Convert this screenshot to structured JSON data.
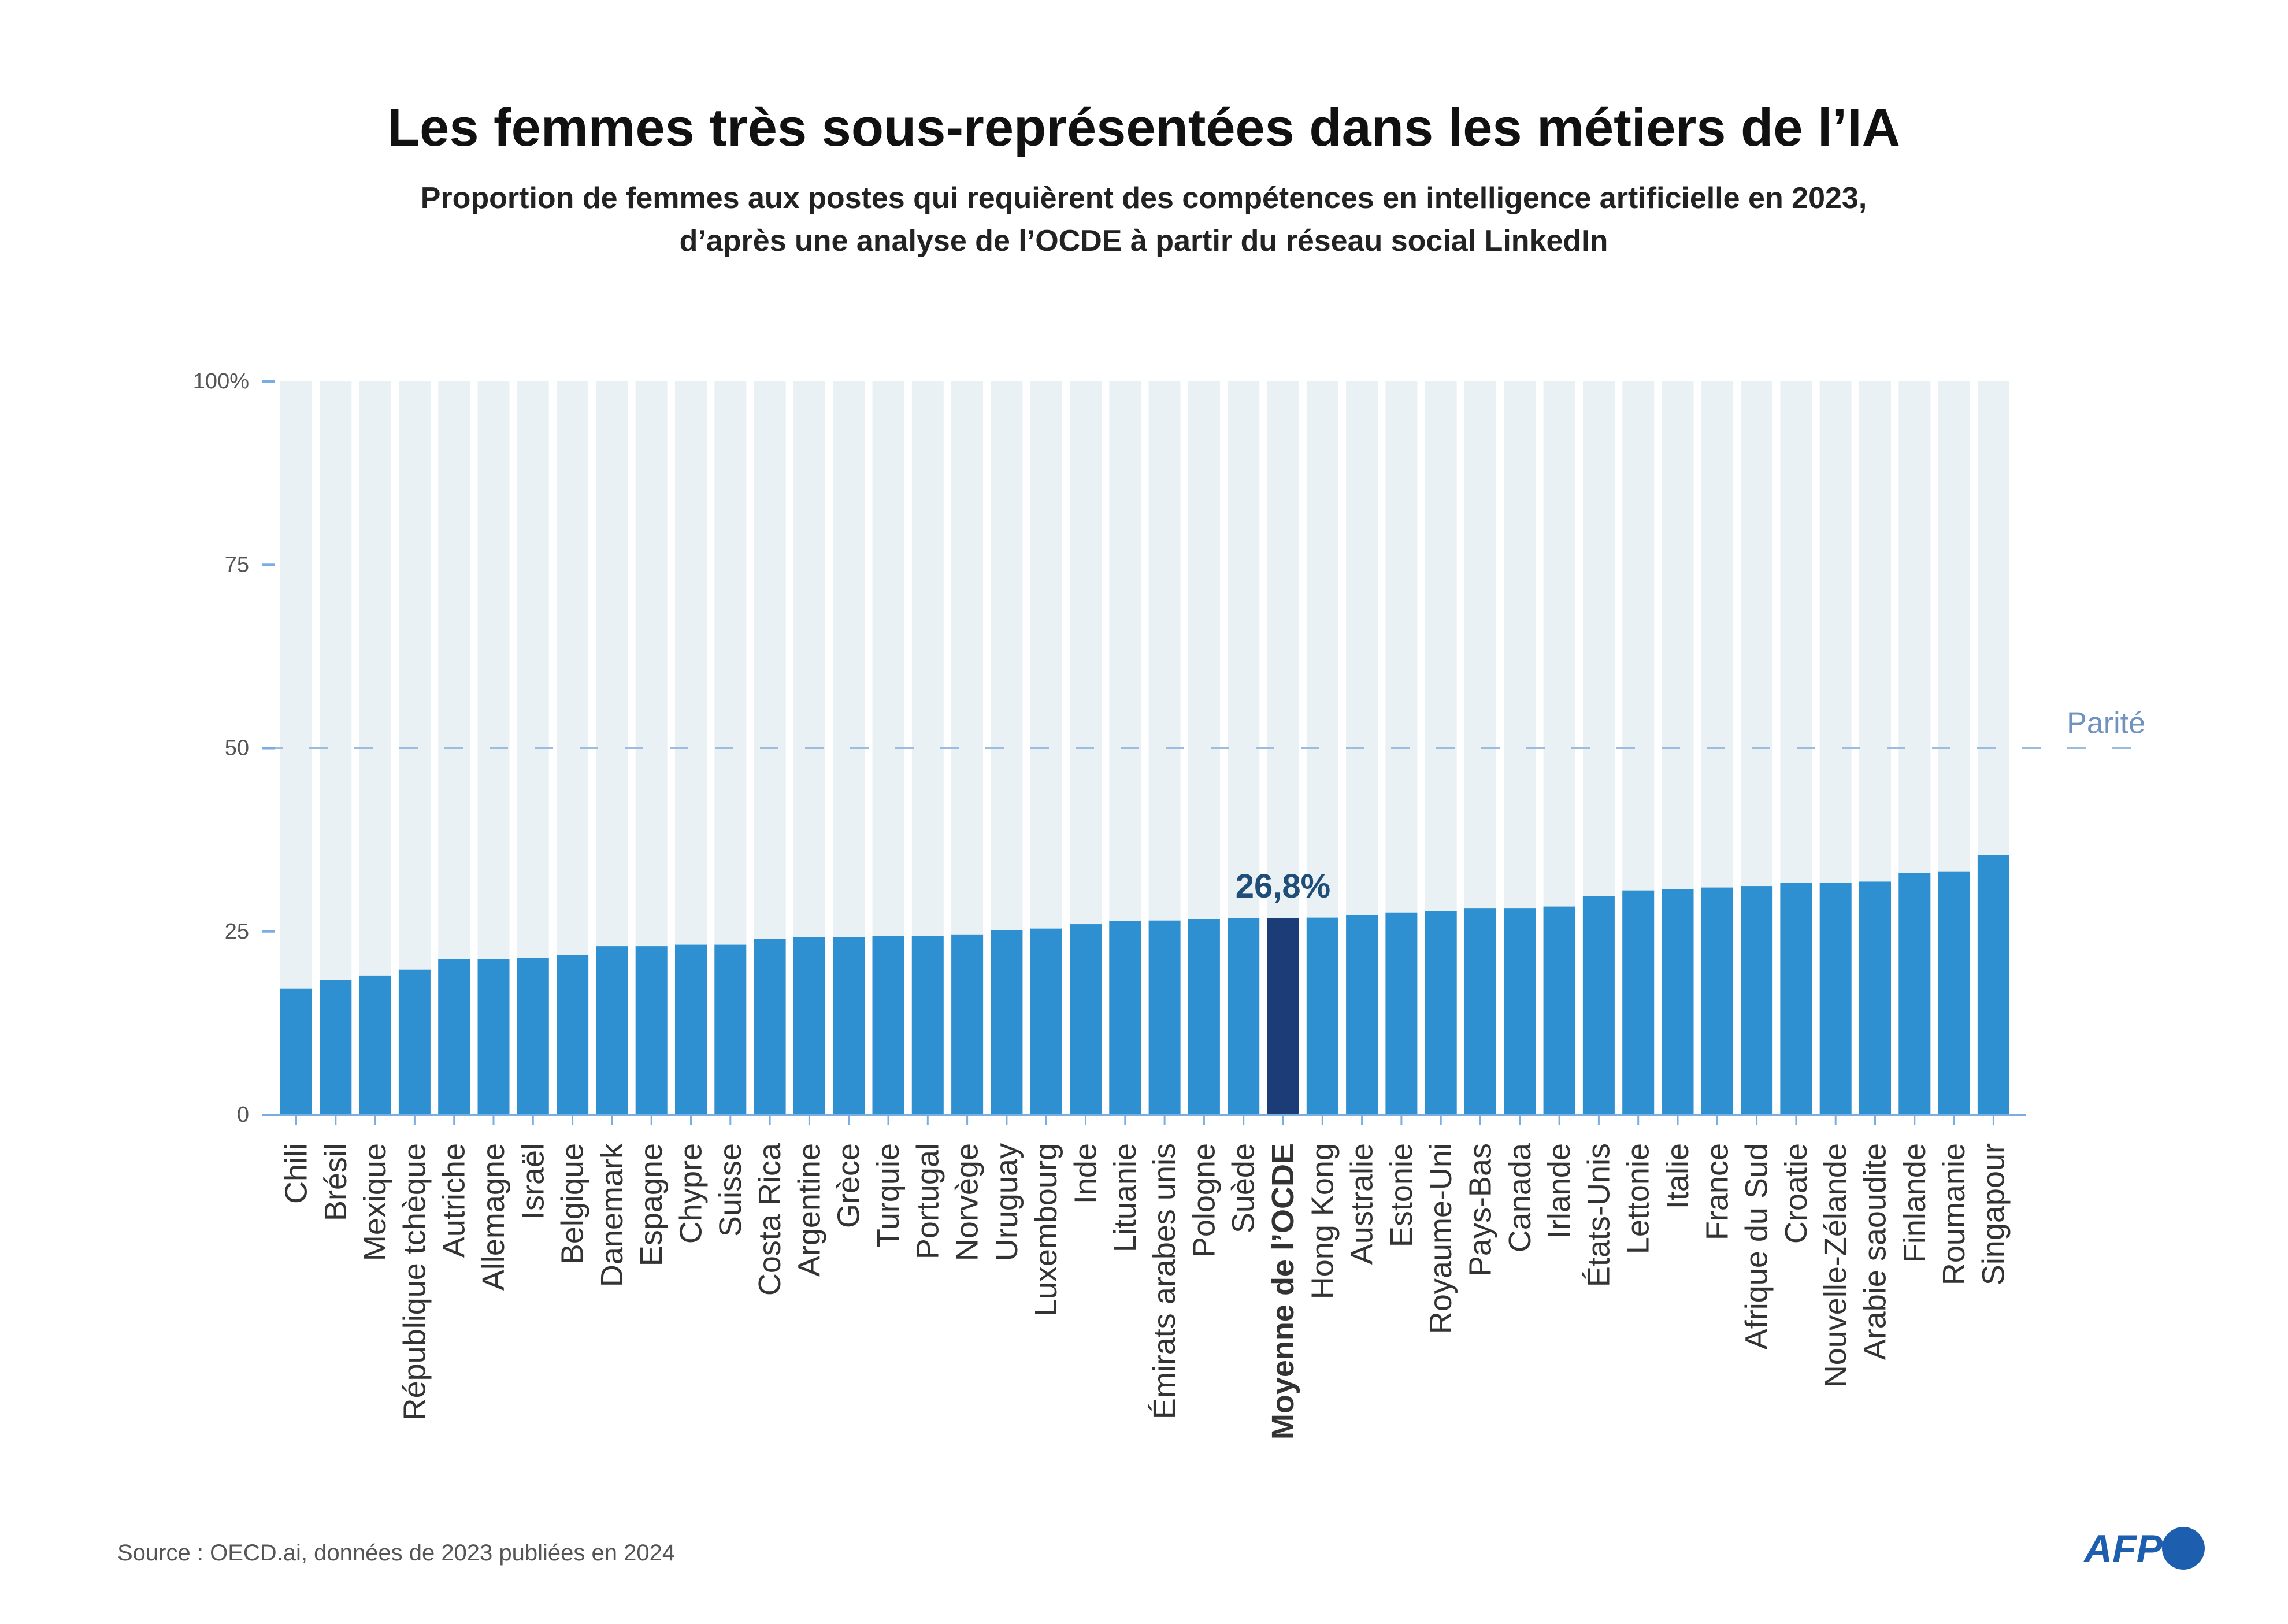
{
  "chart_data": {
    "type": "bar",
    "title": "Les femmes très sous-représentées dans les métiers de l’IA",
    "subtitle": [
      "Proportion de femmes aux postes qui requièrent des compétences en intelligence artificielle en 2023,",
      "d’après une analyse de l’OCDE à partir du réseau social LinkedIn"
    ],
    "categories": [
      "Chili",
      "Brésil",
      "Mexique",
      "République tchèque",
      "Autriche",
      "Allemagne",
      "Israël",
      "Belgique",
      "Danemark",
      "Espagne",
      "Chypre",
      "Suisse",
      "Costa Rica",
      "Argentine",
      "Grèce",
      "Turquie",
      "Portugal",
      "Norvège",
      "Uruguay",
      "Luxembourg",
      "Inde",
      "Lituanie",
      "Émirats arabes unis",
      "Pologne",
      "Suède",
      "Moyenne de l’OCDE",
      "Hong Kong",
      "Australie",
      "Estonie",
      "Royaume-Uni",
      "Pays-Bas",
      "Canada",
      "Irlande",
      "États-Unis",
      "Lettonie",
      "Italie",
      "France",
      "Afrique du Sud",
      "Croatie",
      "Nouvelle-Zélande",
      "Arabie saoudite",
      "Finlande",
      "Roumanie",
      "Singapour"
    ],
    "values": [
      17.2,
      18.4,
      19.0,
      19.8,
      21.2,
      21.2,
      21.4,
      21.8,
      23.0,
      23.0,
      23.2,
      23.2,
      24.0,
      24.2,
      24.2,
      24.4,
      24.4,
      24.6,
      25.2,
      25.4,
      26.0,
      26.4,
      26.5,
      26.7,
      26.8,
      26.8,
      26.9,
      27.2,
      27.6,
      27.8,
      28.2,
      28.2,
      28.4,
      29.8,
      30.6,
      30.8,
      31.0,
      31.2,
      31.6,
      31.6,
      31.8,
      33.0,
      33.2,
      35.4
    ],
    "ylim": [
      0,
      100
    ],
    "y_ticks": [
      0,
      25,
      50,
      75,
      100
    ],
    "y_tick_labels": [
      "0",
      "25",
      "50",
      "75",
      "100%"
    ],
    "grid": false,
    "highlight": "Moyenne de l’OCDE",
    "annotation": {
      "category": "Moyenne de l’OCDE",
      "label": "26,8%"
    },
    "reference_line": {
      "value": 50,
      "label": "Parité"
    },
    "colors": {
      "bar": "#2e8fd1",
      "highlight": "#1c3c78",
      "background_bar": "#e9f1f5",
      "axis": "#7aaee0",
      "parity_line": "#9dbde0",
      "parity_label": "#6f93bd",
      "annotation": "#1f4e79"
    }
  },
  "source": "Source : OECD.ai, données de 2023 publiées en 2024",
  "logo": {
    "text": "AFP",
    "color": "#1d5fae"
  }
}
